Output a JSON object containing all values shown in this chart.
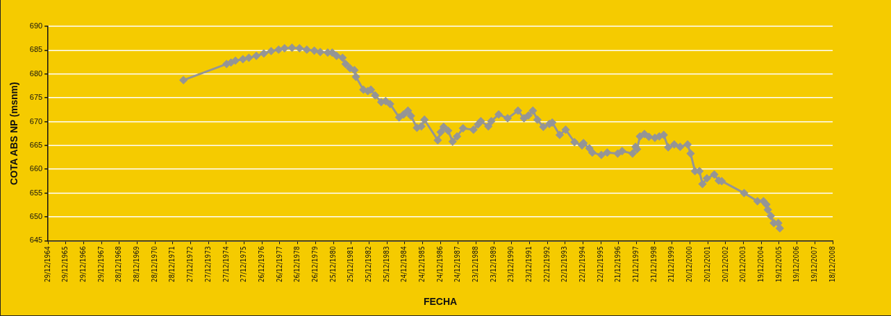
{
  "chart_data": {
    "type": "line",
    "xlabel": "FECHA",
    "ylabel": "COTA ABS NP (msnm)",
    "grid": "y",
    "legend": false,
    "marker": "diamond",
    "line_style": "solid",
    "xlim": [
      "1964-12-29",
      "2008-12-18"
    ],
    "xticks": [
      {
        "value": "1964-12-29",
        "label": "29/12/1964"
      },
      {
        "value": "1965-12-29",
        "label": "29/12/1965"
      },
      {
        "value": "1966-12-29",
        "label": "29/12/1966"
      },
      {
        "value": "1967-12-29",
        "label": "29/12/1967"
      },
      {
        "value": "1968-12-28",
        "label": "28/12/1968"
      },
      {
        "value": "1969-12-28",
        "label": "28/12/1969"
      },
      {
        "value": "1970-12-28",
        "label": "28/12/1970"
      },
      {
        "value": "1971-12-28",
        "label": "28/12/1971"
      },
      {
        "value": "1972-12-27",
        "label": "27/12/1972"
      },
      {
        "value": "1973-12-27",
        "label": "27/12/1973"
      },
      {
        "value": "1974-12-27",
        "label": "27/12/1974"
      },
      {
        "value": "1975-12-27",
        "label": "27/12/1975"
      },
      {
        "value": "1976-12-26",
        "label": "26/12/1976"
      },
      {
        "value": "1977-12-26",
        "label": "26/12/1977"
      },
      {
        "value": "1978-12-26",
        "label": "26/12/1978"
      },
      {
        "value": "1979-12-26",
        "label": "26/12/1979"
      },
      {
        "value": "1980-12-25",
        "label": "25/12/1980"
      },
      {
        "value": "1981-12-25",
        "label": "25/12/1981"
      },
      {
        "value": "1982-12-25",
        "label": "25/12/1982"
      },
      {
        "value": "1983-12-25",
        "label": "25/12/1983"
      },
      {
        "value": "1984-12-24",
        "label": "24/12/1984"
      },
      {
        "value": "1985-12-24",
        "label": "24/12/1985"
      },
      {
        "value": "1986-12-24",
        "label": "24/12/1986"
      },
      {
        "value": "1987-12-24",
        "label": "24/12/1987"
      },
      {
        "value": "1988-12-23",
        "label": "23/12/1988"
      },
      {
        "value": "1989-12-23",
        "label": "23/12/1989"
      },
      {
        "value": "1990-12-23",
        "label": "23/12/1990"
      },
      {
        "value": "1991-12-23",
        "label": "23/12/1991"
      },
      {
        "value": "1992-12-22",
        "label": "22/12/1992"
      },
      {
        "value": "1993-12-22",
        "label": "22/12/1993"
      },
      {
        "value": "1994-12-22",
        "label": "22/12/1994"
      },
      {
        "value": "1995-12-22",
        "label": "22/12/1995"
      },
      {
        "value": "1996-12-21",
        "label": "21/12/1996"
      },
      {
        "value": "1997-12-21",
        "label": "21/12/1997"
      },
      {
        "value": "1998-12-21",
        "label": "21/12/1998"
      },
      {
        "value": "1999-12-21",
        "label": "21/12/1999"
      },
      {
        "value": "2000-12-20",
        "label": "20/12/2000"
      },
      {
        "value": "2001-12-20",
        "label": "20/12/2001"
      },
      {
        "value": "2002-12-20",
        "label": "20/12/2002"
      },
      {
        "value": "2003-12-20",
        "label": "20/12/2003"
      },
      {
        "value": "2004-12-19",
        "label": "19/12/2004"
      },
      {
        "value": "2005-12-19",
        "label": "19/12/2005"
      },
      {
        "value": "2006-12-19",
        "label": "19/12/2006"
      },
      {
        "value": "2007-12-19",
        "label": "19/12/2007"
      },
      {
        "value": "2008-12-18",
        "label": "18/12/2008"
      }
    ],
    "ylim": [
      645,
      690
    ],
    "yticks": [
      645,
      650,
      655,
      660,
      665,
      670,
      675,
      680,
      685,
      690
    ],
    "x": [
      "1972-08",
      "1975-01",
      "1975-04",
      "1975-07",
      "1975-12",
      "1976-04",
      "1976-09",
      "1977-02",
      "1977-07",
      "1977-12",
      "1978-04",
      "1978-09",
      "1979-02",
      "1979-07",
      "1979-12",
      "1980-04",
      "1980-09",
      "1980-12",
      "1981-03",
      "1981-07",
      "1981-09",
      "1981-12",
      "1982-03",
      "1982-04",
      "1982-09",
      "1982-12",
      "1983-02",
      "1983-05",
      "1983-09",
      "1983-12",
      "1984-03",
      "1984-09",
      "1984-12",
      "1985-03",
      "1985-05",
      "1985-09",
      "1985-12",
      "1986-02",
      "1986-11",
      "1987-01",
      "1987-03",
      "1987-06",
      "1987-09",
      "1987-12",
      "1988-04",
      "1988-11",
      "1989-02",
      "1989-04",
      "1989-09",
      "1989-11",
      "1990-04",
      "1990-10",
      "1991-05",
      "1991-09",
      "1991-12",
      "1992-03",
      "1992-06",
      "1992-10",
      "1993-02",
      "1993-04",
      "1993-09",
      "1994-01",
      "1994-07",
      "1994-12",
      "1995-01",
      "1995-05",
      "1995-07",
      "1996-01",
      "1996-05",
      "1996-12",
      "1997-03",
      "1997-10",
      "1997-12",
      "1998-01",
      "1998-03",
      "1998-06",
      "1998-09",
      "1999-01",
      "1999-04",
      "1999-07",
      "1999-10",
      "2000-02",
      "2000-06",
      "2000-11",
      "2001-01",
      "2001-04",
      "2001-07",
      "2001-09",
      "2001-12",
      "2002-05",
      "2002-08",
      "2002-10",
      "2004-01",
      "2004-10",
      "2005-02",
      "2005-04",
      "2005-05",
      "2005-07",
      "2005-09",
      "2005-12",
      "2006-01"
    ],
    "series": [
      {
        "color": "#959595",
        "values": [
          678.7,
          682.1,
          682.4,
          682.8,
          683.1,
          683.4,
          683.8,
          684.3,
          684.8,
          685.1,
          685.4,
          685.5,
          685.4,
          685.1,
          684.9,
          684.6,
          684.5,
          684.5,
          683.8,
          683.4,
          682.1,
          681.2,
          680.8,
          679.4,
          676.7,
          676.4,
          676.7,
          675.5,
          674.1,
          674.3,
          673.7,
          670.9,
          671.5,
          672.3,
          671.2,
          668.7,
          669.0,
          670.4,
          666.1,
          667.8,
          668.9,
          668.1,
          665.8,
          666.9,
          668.6,
          668.3,
          669.4,
          670.1,
          669.0,
          670.1,
          671.5,
          670.7,
          672.3,
          670.7,
          671.3,
          672.3,
          670.4,
          668.9,
          669.5,
          669.8,
          667.2,
          668.3,
          665.7,
          665.0,
          665.5,
          664.4,
          663.5,
          663.0,
          663.5,
          663.3,
          663.8,
          663.3,
          664.7,
          664.2,
          666.9,
          667.4,
          666.8,
          666.6,
          666.9,
          667.2,
          664.6,
          665.2,
          664.7,
          665.2,
          663.3,
          659.6,
          659.6,
          656.9,
          658.1,
          658.9,
          657.6,
          657.5,
          655.0,
          653.3,
          653.3,
          652.6,
          651.5,
          650.2,
          648.7,
          648.7,
          647.6
        ]
      }
    ]
  }
}
